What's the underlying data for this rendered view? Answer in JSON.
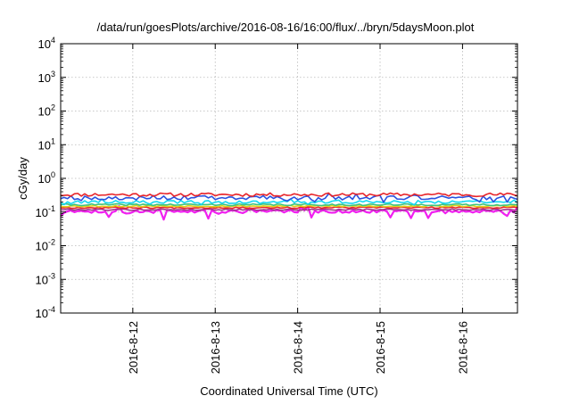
{
  "chart_data": {
    "type": "line",
    "title": "/data/run/goesPlots/archive/2016-08-16/16:00/flux/../bryn/5daysMoon.plot",
    "xlabel": "Coordinated Universal Time (UTC)",
    "ylabel": "cGy/day",
    "y_scale": "log",
    "ylim": [
      0.0001,
      10000
    ],
    "y_ticks": [
      {
        "base": "10",
        "exp": "-4",
        "value": 0.0001
      },
      {
        "base": "10",
        "exp": "-3",
        "value": 0.001
      },
      {
        "base": "10",
        "exp": "-2",
        "value": 0.01
      },
      {
        "base": "10",
        "exp": "-1",
        "value": 0.1
      },
      {
        "base": "10",
        "exp": "0",
        "value": 1
      },
      {
        "base": "10",
        "exp": "1",
        "value": 10
      },
      {
        "base": "10",
        "exp": "2",
        "value": 100
      },
      {
        "base": "10",
        "exp": "3",
        "value": 1000
      },
      {
        "base": "10",
        "exp": "4",
        "value": 10000
      }
    ],
    "xlim": [
      "2016-08-11 03:00",
      "2016-08-16 16:00"
    ],
    "x_ticks": [
      {
        "label": "2016-8-12",
        "value": "2016-08-12 00:00"
      },
      {
        "label": "2016-8-13",
        "value": "2016-08-13 00:00"
      },
      {
        "label": "2016-8-14",
        "value": "2016-08-14 00:00"
      },
      {
        "label": "2016-8-15",
        "value": "2016-08-15 00:00"
      },
      {
        "label": "2016-8-16",
        "value": "2016-08-16 00:00"
      }
    ],
    "grid": true,
    "x_start": "2016-08-11 03:00",
    "x_end": "2016-08-16 16:00",
    "point_count": 134,
    "series": [
      {
        "color": "#e8242a",
        "base": 0.33,
        "jitter": 0.12,
        "spikes": 0.0,
        "seed": 11
      },
      {
        "color": "#2a52e0",
        "base": 0.27,
        "jitter": 0.15,
        "spikes": 0.15,
        "seed": 23
      },
      {
        "color": "#12d8f0",
        "base": 0.2,
        "jitter": 0.1,
        "spikes": 0.12,
        "seed": 37
      },
      {
        "color": "#3fc37e",
        "base": 0.165,
        "jitter": 0.06,
        "spikes": 0.0,
        "seed": 41
      },
      {
        "color": "#e1d21c",
        "base": 0.15,
        "jitter": 0.05,
        "spikes": 0.0,
        "seed": 53
      },
      {
        "color": "#e8242a",
        "base": 0.135,
        "jitter": 0.05,
        "spikes": 0.0,
        "seed": 67
      },
      {
        "color": "#a0328a",
        "base": 0.118,
        "jitter": 0.05,
        "spikes": 0.0,
        "seed": 79
      },
      {
        "color": "#f020f0",
        "base": 0.105,
        "jitter": 0.1,
        "spikes": 0.35,
        "seed": 97
      }
    ]
  }
}
